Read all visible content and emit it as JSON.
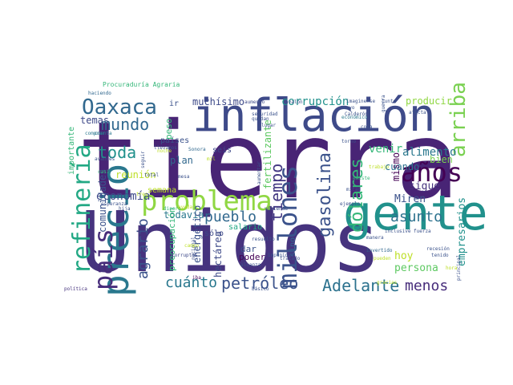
{
  "word_cloud": {
    "words": [
      {
        "text": "tierra",
        "color": "#482475"
      },
      {
        "text": "Unidos",
        "color": "#46337e"
      },
      {
        "text": "inflación",
        "color": "#3e4a89"
      },
      {
        "text": "gente",
        "color": "#21918c"
      },
      {
        "text": "problema",
        "color": "#90d743"
      },
      {
        "text": "precio",
        "color": "#2a788e"
      },
      {
        "text": "refinería",
        "color": "#22a884"
      },
      {
        "text": "país",
        "color": "#472d7b"
      },
      {
        "text": "millones",
        "color": "#3b528b"
      },
      {
        "text": "años",
        "color": "#440154"
      },
      {
        "text": "Oaxaca",
        "color": "#31688e"
      },
      {
        "text": "gasolina",
        "color": "#3b528b"
      },
      {
        "text": "arriba",
        "color": "#7ad151"
      },
      {
        "text": "dólares",
        "color": "#35b779"
      },
      {
        "text": "Adelante",
        "color": "#2c728e"
      },
      {
        "text": "petróleo",
        "color": "#3b528b"
      },
      {
        "text": "mundo",
        "color": "#31688e"
      },
      {
        "text": "toda",
        "color": "#21918c"
      },
      {
        "text": "pueblo",
        "color": "#31688e"
      },
      {
        "text": "cuánto",
        "color": "#2a788e"
      },
      {
        "text": "agrario",
        "color": "#3b528b"
      },
      {
        "text": "asunto",
        "color": "#2c728e"
      },
      {
        "text": "tiempo",
        "color": "#443983"
      },
      {
        "text": "menos",
        "color": "#472d7b"
      },
      {
        "text": "economía",
        "color": "#3e4a89"
      },
      {
        "text": "corrupción",
        "color": "#21918c"
      },
      {
        "text": "muchísimo",
        "color": "#3e4a89"
      },
      {
        "text": "Miren",
        "color": "#3b528b"
      },
      {
        "text": "alimento",
        "color": "#2a788e"
      },
      {
        "text": "venir",
        "color": "#35b779"
      },
      {
        "text": "sigue",
        "color": "#46337e"
      },
      {
        "text": "mismo",
        "color": "#440154"
      },
      {
        "text": "bien",
        "color": "#7ad151"
      },
      {
        "text": "cuando",
        "color": "#2c728e"
      },
      {
        "text": "hoy",
        "color": "#bddf26"
      },
      {
        "text": "persona",
        "color": "#5ec962"
      },
      {
        "text": "empresarios",
        "color": "#21918c"
      },
      {
        "text": "producir",
        "color": "#90d743"
      },
      {
        "text": "comunidades",
        "color": "#3b528b"
      },
      {
        "text": "todavía",
        "color": "#2a788e"
      },
      {
        "text": "reunión",
        "color": "#bddf26"
      },
      {
        "text": "fertilizante",
        "color": "#5ec962"
      },
      {
        "text": "energético",
        "color": "#3b528b"
      },
      {
        "text": "hectárea",
        "color": "#3e4a89"
      },
      {
        "text": "preocupación",
        "color": "#35b779"
      },
      {
        "text": "importante",
        "color": "#35b779"
      },
      {
        "text": "temas",
        "color": "#3e4a89"
      },
      {
        "text": "países",
        "color": "#3b528b"
      },
      {
        "text": "plan",
        "color": "#31688e"
      },
      {
        "text": "peso",
        "color": "#35b779"
      },
      {
        "text": "seis",
        "color": "#3e4a89"
      },
      {
        "text": "salario",
        "color": "#22a884"
      },
      {
        "text": "sólo",
        "color": "#3e4a89"
      },
      {
        "text": "dar",
        "color": "#3b528b"
      },
      {
        "text": "poder",
        "color": "#440154"
      },
      {
        "text": "sino",
        "color": "#31688e"
      },
      {
        "text": "ir",
        "color": "#3b528b"
      },
      {
        "text": "semana",
        "color": "#bddf26"
      },
      {
        "text": "Procuraduría Agraria",
        "color": "#35b779"
      },
      {
        "text": "haciendo",
        "color": "#31688e"
      },
      {
        "text": "comprar",
        "color": "#2a788e"
      },
      {
        "text": "cuenta",
        "color": "#2a788e"
      },
      {
        "text": "Sonora",
        "color": "#31688e"
      },
      {
        "text": "corruptos",
        "color": "#3e4a89"
      },
      {
        "text": "resuelto",
        "color": "#3b528b"
      },
      {
        "text": "alcanza",
        "color": "#3b528b"
      },
      {
        "text": "tratado",
        "color": "#3b528b"
      },
      {
        "text": "aumento",
        "color": "#3e4a89"
      },
      {
        "text": "avalón",
        "color": "#3b528b"
      },
      {
        "text": "imaginense",
        "color": "#3b528b"
      },
      {
        "text": "seguridad",
        "color": "#3b528b"
      },
      {
        "text": "quedan",
        "color": "#3b528b"
      },
      {
        "text": "lugar",
        "color": "#3b528b"
      },
      {
        "text": "recesión",
        "color": "#3b528b"
      },
      {
        "text": "política",
        "color": "#46337e"
      },
      {
        "text": "nacional",
        "color": "#3b528b"
      },
      {
        "text": "invertido",
        "color": "#31688e"
      },
      {
        "text": "pueden",
        "color": "#bddf26"
      },
      {
        "text": "mayo",
        "color": "#3b528b"
      },
      {
        "text": "afecta",
        "color": "#3b528b"
      },
      {
        "text": "Calderón",
        "color": "#3b528b"
      },
      {
        "text": "económico",
        "color": "#2a788e"
      },
      {
        "text": "torno",
        "color": "#3b528b"
      },
      {
        "text": "trabajo",
        "color": "#bddf26"
      },
      {
        "text": "manera",
        "color": "#3b528b"
      },
      {
        "text": "existe",
        "color": "#35b779"
      },
      {
        "text": "ejemplo",
        "color": "#3b528b"
      },
      {
        "text": "dinero",
        "color": "#35b779"
      },
      {
        "text": "ayuda",
        "color": "#bddf26"
      },
      {
        "text": "esperanza",
        "color": "#3b528b"
      },
      {
        "text": "básico",
        "color": "#3b528b"
      },
      {
        "text": "impunidad",
        "color": "#3b528b"
      },
      {
        "text": "iba",
        "color": "#440154"
      },
      {
        "text": "cosa",
        "color": "#3b528b"
      },
      {
        "text": "guerra",
        "color": "#3b528b"
      },
      {
        "text": "junto",
        "color": "#3b528b"
      },
      {
        "text": "principal",
        "color": "#3b528b"
      },
      {
        "text": "aumentar",
        "color": "#3b528b"
      },
      {
        "text": "vivienda",
        "color": "#3b528b"
      },
      {
        "text": "llevamos",
        "color": "#3b528b"
      },
      {
        "text": "mitad",
        "color": "#3b528b"
      },
      {
        "text": "hija",
        "color": "#3b528b"
      },
      {
        "text": "total",
        "color": "#3b528b"
      },
      {
        "text": "mesa",
        "color": "#3b528b"
      },
      {
        "text": "seguir",
        "color": "#3b528b"
      },
      {
        "text": "casi",
        "color": "#35b779"
      },
      {
        "text": "avances",
        "color": "#3b528b"
      },
      {
        "text": "inclusive",
        "color": "#3b528b"
      },
      {
        "text": "tenido",
        "color": "#3b528b"
      },
      {
        "text": "fuerza",
        "color": "#3b528b"
      },
      {
        "text": "campo",
        "color": "#bddf26"
      },
      {
        "text": "tres",
        "color": "#bddf26"
      },
      {
        "text": "hora",
        "color": "#bddf26"
      },
      {
        "text": "gracias",
        "color": "#bddf26"
      },
      {
        "text": "noche",
        "color": "#bddf26"
      },
      {
        "text": "mil",
        "color": "#bddf26"
      }
    ]
  }
}
